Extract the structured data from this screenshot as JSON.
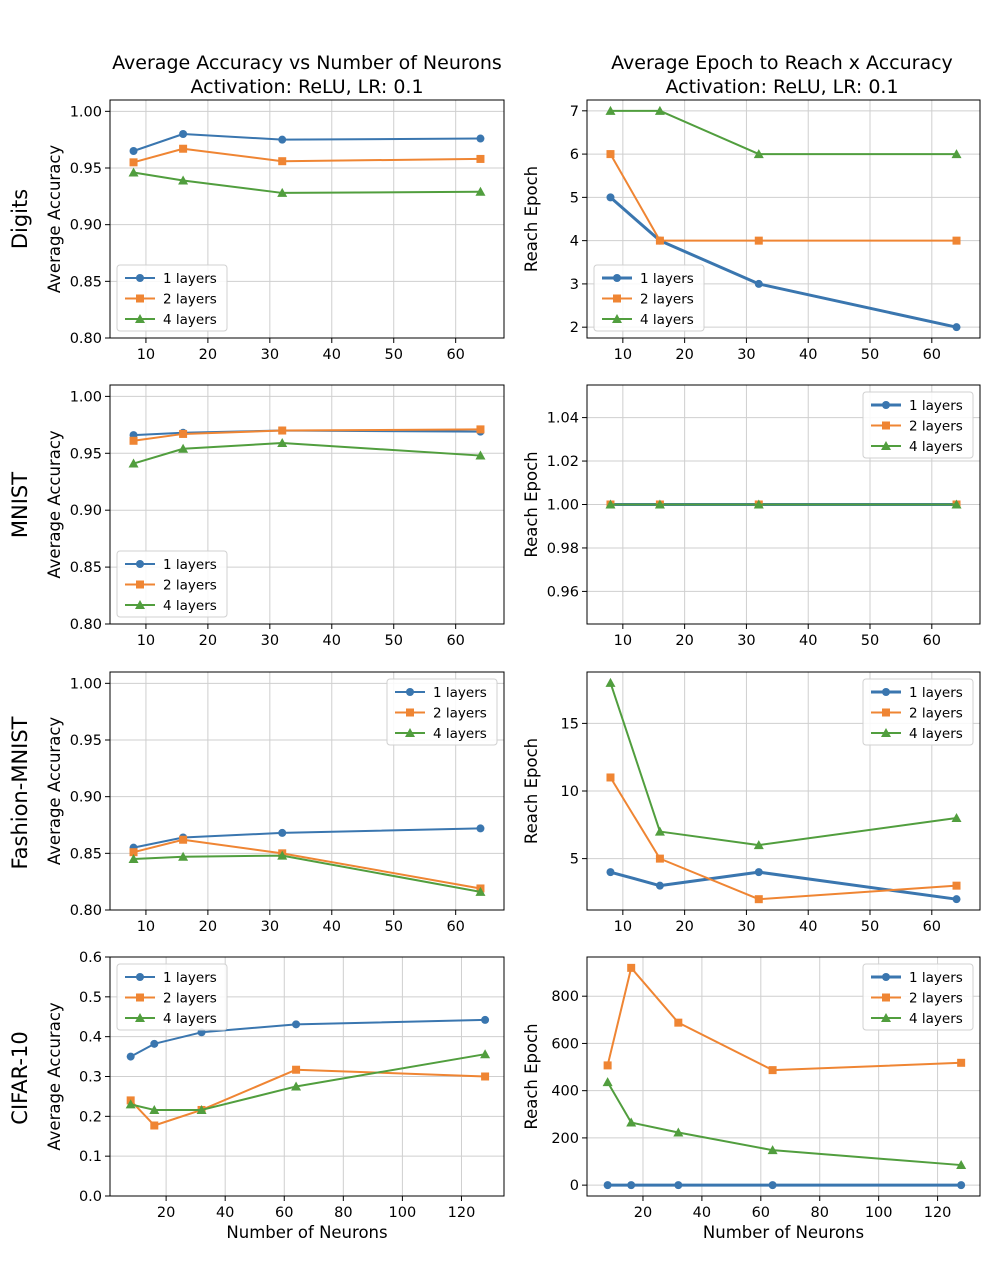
{
  "figure": {
    "col_titles": [
      [
        "Average Accuracy vs Number of Neurons",
        "Activation: ReLU, LR: 0.1"
      ],
      [
        "Average Epoch to Reach x Accuracy",
        "Activation: ReLU, LR: 0.1"
      ]
    ],
    "row_labels": [
      "Digits",
      "MNIST",
      "Fashion-MNIST",
      "CIFAR-10"
    ],
    "xlabel": "Number of Neurons",
    "colors": {
      "1 layers": "#3a76af",
      "2 layers": "#ef8533",
      "4 layers": "#519e3e",
      "grid": "#cfcfcf",
      "axis": "#000000"
    }
  },
  "chart_data": [
    {
      "id": "digits-accuracy",
      "type": "line",
      "row": "Digits",
      "column": "accuracy",
      "xlabel": "",
      "ylabel": "Average Accuracy",
      "xlim": [
        4.2,
        67.8
      ],
      "ylim": [
        0.8,
        1.01
      ],
      "xticks": [
        10,
        20,
        30,
        40,
        50,
        60
      ],
      "yticks": [
        0.8,
        0.85,
        0.9,
        0.95,
        1.0
      ],
      "ytick_labels": [
        "0.80",
        "0.85",
        "0.90",
        "0.95",
        "1.00"
      ],
      "legend": "lower-left",
      "series": [
        {
          "name": "1 layers",
          "x": [
            8,
            16,
            32,
            64
          ],
          "values": [
            0.965,
            0.98,
            0.975,
            0.976
          ]
        },
        {
          "name": "2 layers",
          "x": [
            8,
            16,
            32,
            64
          ],
          "values": [
            0.955,
            0.967,
            0.956,
            0.958
          ]
        },
        {
          "name": "4 layers",
          "x": [
            8,
            16,
            32,
            64
          ],
          "values": [
            0.946,
            0.939,
            0.928,
            0.929
          ]
        }
      ]
    },
    {
      "id": "digits-epoch",
      "type": "line",
      "row": "Digits",
      "column": "epoch",
      "xlabel": "",
      "ylabel": "Reach Epoch",
      "xlim": [
        4.2,
        67.8
      ],
      "ylim": [
        1.75,
        7.25
      ],
      "xticks": [
        10,
        20,
        30,
        40,
        50,
        60
      ],
      "yticks": [
        2,
        3,
        4,
        5,
        6,
        7
      ],
      "ytick_labels": [
        "2",
        "3",
        "4",
        "5",
        "6",
        "7"
      ],
      "legend": "lower-left",
      "series": [
        {
          "name": "1 layers",
          "x": [
            8,
            16,
            32,
            64
          ],
          "values": [
            5,
            4,
            3,
            2
          ]
        },
        {
          "name": "2 layers",
          "x": [
            8,
            16,
            32,
            64
          ],
          "values": [
            6,
            4,
            4,
            4
          ]
        },
        {
          "name": "4 layers",
          "x": [
            8,
            16,
            32,
            64
          ],
          "values": [
            7,
            7,
            6,
            6
          ]
        }
      ]
    },
    {
      "id": "mnist-accuracy",
      "type": "line",
      "row": "MNIST",
      "column": "accuracy",
      "xlabel": "",
      "ylabel": "Average Accuracy",
      "xlim": [
        4.2,
        67.8
      ],
      "ylim": [
        0.8,
        1.01
      ],
      "xticks": [
        10,
        20,
        30,
        40,
        50,
        60
      ],
      "yticks": [
        0.8,
        0.85,
        0.9,
        0.95,
        1.0
      ],
      "ytick_labels": [
        "0.80",
        "0.85",
        "0.90",
        "0.95",
        "1.00"
      ],
      "legend": "lower-left",
      "series": [
        {
          "name": "1 layers",
          "x": [
            8,
            16,
            32,
            64
          ],
          "values": [
            0.966,
            0.968,
            0.97,
            0.969
          ]
        },
        {
          "name": "2 layers",
          "x": [
            8,
            16,
            32,
            64
          ],
          "values": [
            0.961,
            0.967,
            0.97,
            0.971
          ]
        },
        {
          "name": "4 layers",
          "x": [
            8,
            16,
            32,
            64
          ],
          "values": [
            0.941,
            0.954,
            0.959,
            0.948
          ]
        }
      ]
    },
    {
      "id": "mnist-epoch",
      "type": "line",
      "row": "MNIST",
      "column": "epoch",
      "xlabel": "",
      "ylabel": "Reach Epoch",
      "xlim": [
        4.2,
        67.8
      ],
      "ylim": [
        0.945,
        1.055
      ],
      "xticks": [
        10,
        20,
        30,
        40,
        50,
        60
      ],
      "yticks": [
        0.96,
        0.98,
        1.0,
        1.02,
        1.04
      ],
      "ytick_labels": [
        "0.96",
        "0.98",
        "1.00",
        "1.02",
        "1.04"
      ],
      "legend": "upper-right",
      "series": [
        {
          "name": "1 layers",
          "x": [
            8,
            16,
            32,
            64
          ],
          "values": [
            1,
            1,
            1,
            1
          ]
        },
        {
          "name": "2 layers",
          "x": [
            8,
            16,
            32,
            64
          ],
          "values": [
            1,
            1,
            1,
            1
          ]
        },
        {
          "name": "4 layers",
          "x": [
            8,
            16,
            32,
            64
          ],
          "values": [
            1,
            1,
            1,
            1
          ]
        }
      ]
    },
    {
      "id": "fashion-accuracy",
      "type": "line",
      "row": "Fashion-MNIST",
      "column": "accuracy",
      "xlabel": "",
      "ylabel": "Average Accuracy",
      "xlim": [
        4.2,
        67.8
      ],
      "ylim": [
        0.8,
        1.01
      ],
      "xticks": [
        10,
        20,
        30,
        40,
        50,
        60
      ],
      "yticks": [
        0.8,
        0.85,
        0.9,
        0.95,
        1.0
      ],
      "ytick_labels": [
        "0.80",
        "0.85",
        "0.90",
        "0.95",
        "1.00"
      ],
      "legend": "upper-right",
      "series": [
        {
          "name": "1 layers",
          "x": [
            8,
            16,
            32,
            64
          ],
          "values": [
            0.855,
            0.864,
            0.868,
            0.872
          ]
        },
        {
          "name": "2 layers",
          "x": [
            8,
            16,
            32,
            64
          ],
          "values": [
            0.851,
            0.862,
            0.85,
            0.819
          ]
        },
        {
          "name": "4 layers",
          "x": [
            8,
            16,
            32,
            64
          ],
          "values": [
            0.845,
            0.847,
            0.848,
            0.816
          ]
        }
      ]
    },
    {
      "id": "fashion-epoch",
      "type": "line",
      "row": "Fashion-MNIST",
      "column": "epoch",
      "xlabel": "",
      "ylabel": "Reach Epoch",
      "xlim": [
        4.2,
        67.8
      ],
      "ylim": [
        1.2,
        18.8
      ],
      "xticks": [
        10,
        20,
        30,
        40,
        50,
        60
      ],
      "yticks": [
        5,
        10,
        15
      ],
      "ytick_labels": [
        "5",
        "10",
        "15"
      ],
      "legend": "upper-right",
      "series": [
        {
          "name": "1 layers",
          "x": [
            8,
            16,
            32,
            64
          ],
          "values": [
            4,
            3,
            4,
            2
          ]
        },
        {
          "name": "2 layers",
          "x": [
            8,
            16,
            32,
            64
          ],
          "values": [
            11,
            5,
            2,
            3
          ]
        },
        {
          "name": "4 layers",
          "x": [
            8,
            16,
            32,
            64
          ],
          "values": [
            18,
            7,
            6,
            8
          ]
        }
      ]
    },
    {
      "id": "cifar-accuracy",
      "type": "line",
      "row": "CIFAR-10",
      "column": "accuracy",
      "xlabel": "Number of Neurons",
      "ylabel": "Average Accuracy",
      "xlim": [
        1.0,
        134.4
      ],
      "ylim": [
        0.0,
        0.6
      ],
      "xticks": [
        20,
        40,
        60,
        80,
        100,
        120
      ],
      "yticks": [
        0.0,
        0.1,
        0.2,
        0.3,
        0.4,
        0.5,
        0.6
      ],
      "ytick_labels": [
        "0.0",
        "0.1",
        "0.2",
        "0.3",
        "0.4",
        "0.5",
        "0.6"
      ],
      "legend": "upper-left",
      "series": [
        {
          "name": "1 layers",
          "x": [
            8,
            16,
            32,
            64,
            128
          ],
          "values": [
            0.35,
            0.382,
            0.411,
            0.431,
            0.442
          ]
        },
        {
          "name": "2 layers",
          "x": [
            8,
            16,
            32,
            64,
            128
          ],
          "values": [
            0.24,
            0.177,
            0.216,
            0.317,
            0.3
          ]
        },
        {
          "name": "4 layers",
          "x": [
            8,
            16,
            32,
            64,
            128
          ],
          "values": [
            0.23,
            0.216,
            0.216,
            0.275,
            0.356
          ]
        }
      ]
    },
    {
      "id": "cifar-epoch",
      "type": "line",
      "row": "CIFAR-10",
      "column": "epoch",
      "xlabel": "Number of Neurons",
      "ylabel": "Reach Epoch",
      "xlim": [
        1.0,
        134.4
      ],
      "ylim": [
        -46,
        966
      ],
      "xticks": [
        20,
        40,
        60,
        80,
        100,
        120
      ],
      "yticks": [
        0,
        200,
        400,
        600,
        800
      ],
      "ytick_labels": [
        "0",
        "200",
        "400",
        "600",
        "800"
      ],
      "legend": "upper-right",
      "series": [
        {
          "name": "1 layers",
          "x": [
            8,
            16,
            32,
            64,
            128
          ],
          "values": [
            0,
            0,
            0,
            0,
            0
          ]
        },
        {
          "name": "2 layers",
          "x": [
            8,
            16,
            32,
            64,
            128
          ],
          "values": [
            507,
            920,
            688,
            487,
            518
          ]
        },
        {
          "name": "4 layers",
          "x": [
            8,
            16,
            32,
            64,
            128
          ],
          "values": [
            436,
            265,
            223,
            148,
            85
          ]
        }
      ]
    }
  ]
}
